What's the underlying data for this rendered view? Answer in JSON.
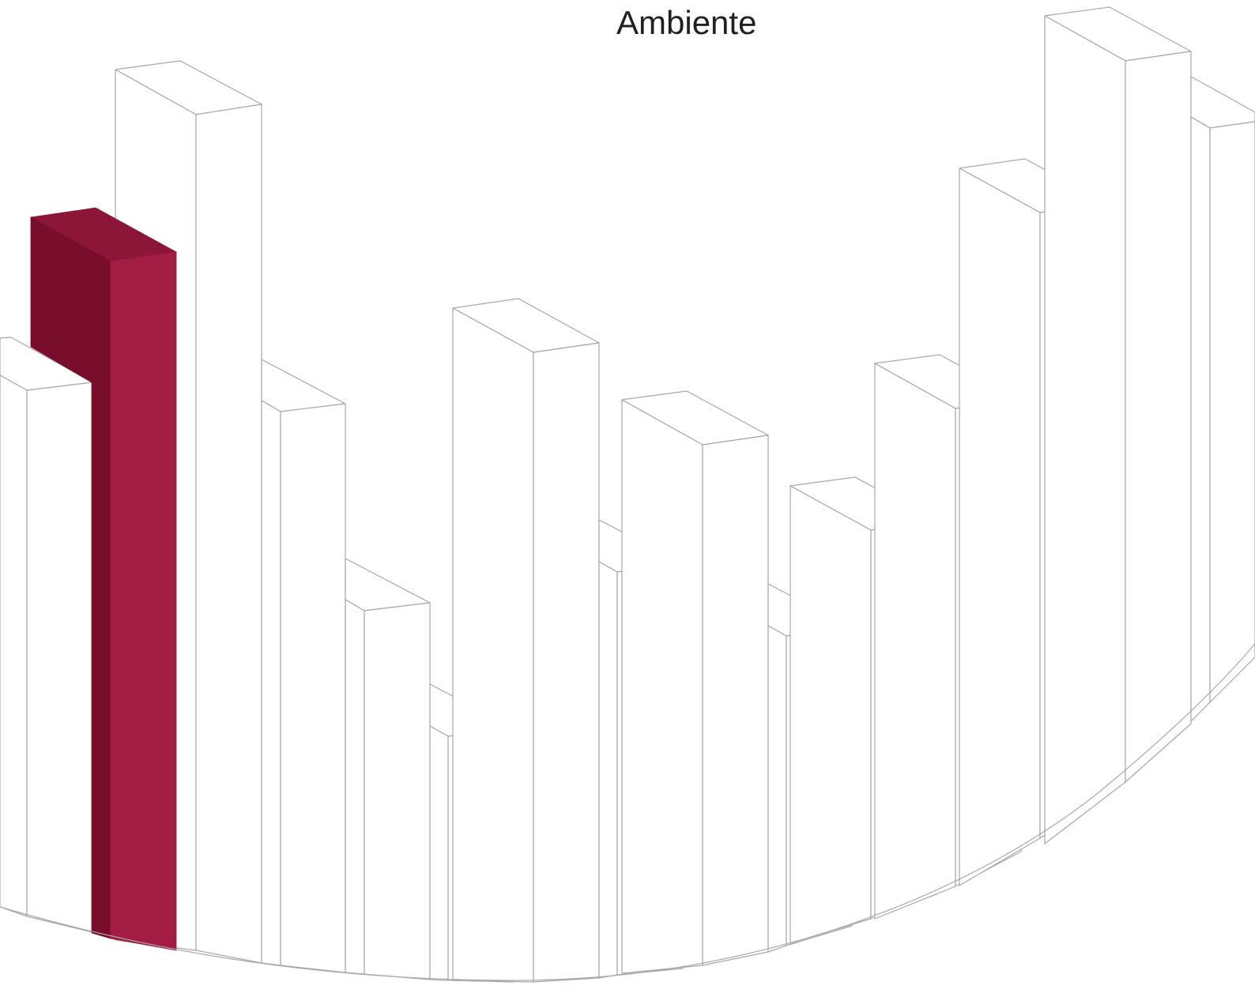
{
  "title_fragment": "Ambiente",
  "colors": {
    "background": "#ffffff",
    "outline": "#a8a8a8",
    "accent_front": "#a31c44",
    "accent_side": "#780d2c",
    "accent_top": "#8c1638",
    "text": "#231f20"
  }
}
